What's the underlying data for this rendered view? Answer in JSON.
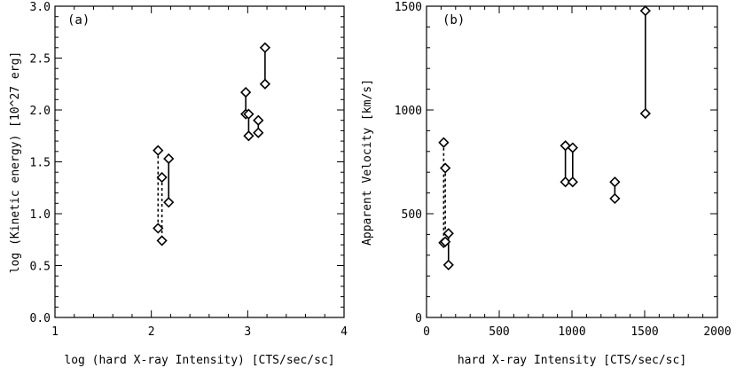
{
  "chart_data": [
    {
      "type": "scatter",
      "panel_label": "(a)",
      "xlabel": "log (hard X-ray Intensity) [CTS/sec/sc]",
      "ylabel": "log (Kinetic energy) [10^27 erg]",
      "xlim": [
        1,
        4
      ],
      "ylim": [
        0,
        3.0
      ],
      "xticks": [
        1,
        2,
        3,
        4
      ],
      "xtick_labels": [
        "1",
        "2",
        "3",
        "4"
      ],
      "yticks": [
        0.0,
        0.5,
        1.0,
        1.5,
        2.0,
        2.5,
        3.0
      ],
      "ytick_labels": [
        "0.0",
        "0.5",
        "1.0",
        "1.5",
        "2.0",
        "2.5",
        "3.0"
      ],
      "pairs": [
        {
          "style": "dashed",
          "points": [
            {
              "x": 2.07,
              "y": 1.61
            },
            {
              "x": 2.07,
              "y": 0.86
            }
          ]
        },
        {
          "style": "dashed",
          "points": [
            {
              "x": 2.11,
              "y": 1.35
            },
            {
              "x": 2.11,
              "y": 0.74
            }
          ]
        },
        {
          "style": "solid",
          "points": [
            {
              "x": 2.18,
              "y": 1.53
            },
            {
              "x": 2.18,
              "y": 1.11
            }
          ]
        },
        {
          "style": "solid",
          "points": [
            {
              "x": 2.98,
              "y": 2.17
            },
            {
              "x": 2.98,
              "y": 1.96
            }
          ]
        },
        {
          "style": "solid",
          "points": [
            {
              "x": 3.01,
              "y": 1.96
            },
            {
              "x": 3.01,
              "y": 1.75
            }
          ]
        },
        {
          "style": "solid",
          "points": [
            {
              "x": 3.11,
              "y": 1.9
            },
            {
              "x": 3.11,
              "y": 1.78
            }
          ]
        },
        {
          "style": "solid",
          "points": [
            {
              "x": 3.18,
              "y": 2.6
            },
            {
              "x": 3.18,
              "y": 2.25
            }
          ]
        }
      ]
    },
    {
      "type": "scatter",
      "panel_label": "(b)",
      "xlabel": "hard X-ray Intensity [CTS/sec/sc]",
      "ylabel": "Apparent Velocity [km/s]",
      "xlim": [
        0,
        2000
      ],
      "ylim": [
        0,
        1500
      ],
      "xticks": [
        0,
        500,
        1000,
        1500,
        2000
      ],
      "xtick_labels": [
        "0",
        "500",
        "1000",
        "1500",
        "2000"
      ],
      "yticks": [
        0,
        500,
        1000,
        1500
      ],
      "ytick_labels": [
        "0",
        "500",
        "1000",
        "1500"
      ],
      "pairs": [
        {
          "style": "dashed",
          "points": [
            {
              "x": 118,
              "y": 843
            },
            {
              "x": 118,
              "y": 360
            }
          ]
        },
        {
          "style": "dashed",
          "points": [
            {
              "x": 129,
              "y": 720
            },
            {
              "x": 129,
              "y": 365
            }
          ]
        },
        {
          "style": "solid",
          "points": [
            {
              "x": 151,
              "y": 405
            },
            {
              "x": 151,
              "y": 253
            }
          ]
        },
        {
          "style": "solid",
          "points": [
            {
              "x": 955,
              "y": 828
            },
            {
              "x": 955,
              "y": 653
            }
          ]
        },
        {
          "style": "solid",
          "points": [
            {
              "x": 1005,
              "y": 818
            },
            {
              "x": 1005,
              "y": 653
            }
          ]
        },
        {
          "style": "solid",
          "points": [
            {
              "x": 1295,
              "y": 653
            },
            {
              "x": 1295,
              "y": 573
            }
          ]
        },
        {
          "style": "solid",
          "points": [
            {
              "x": 1505,
              "y": 1478
            },
            {
              "x": 1505,
              "y": 983
            }
          ]
        }
      ]
    }
  ]
}
